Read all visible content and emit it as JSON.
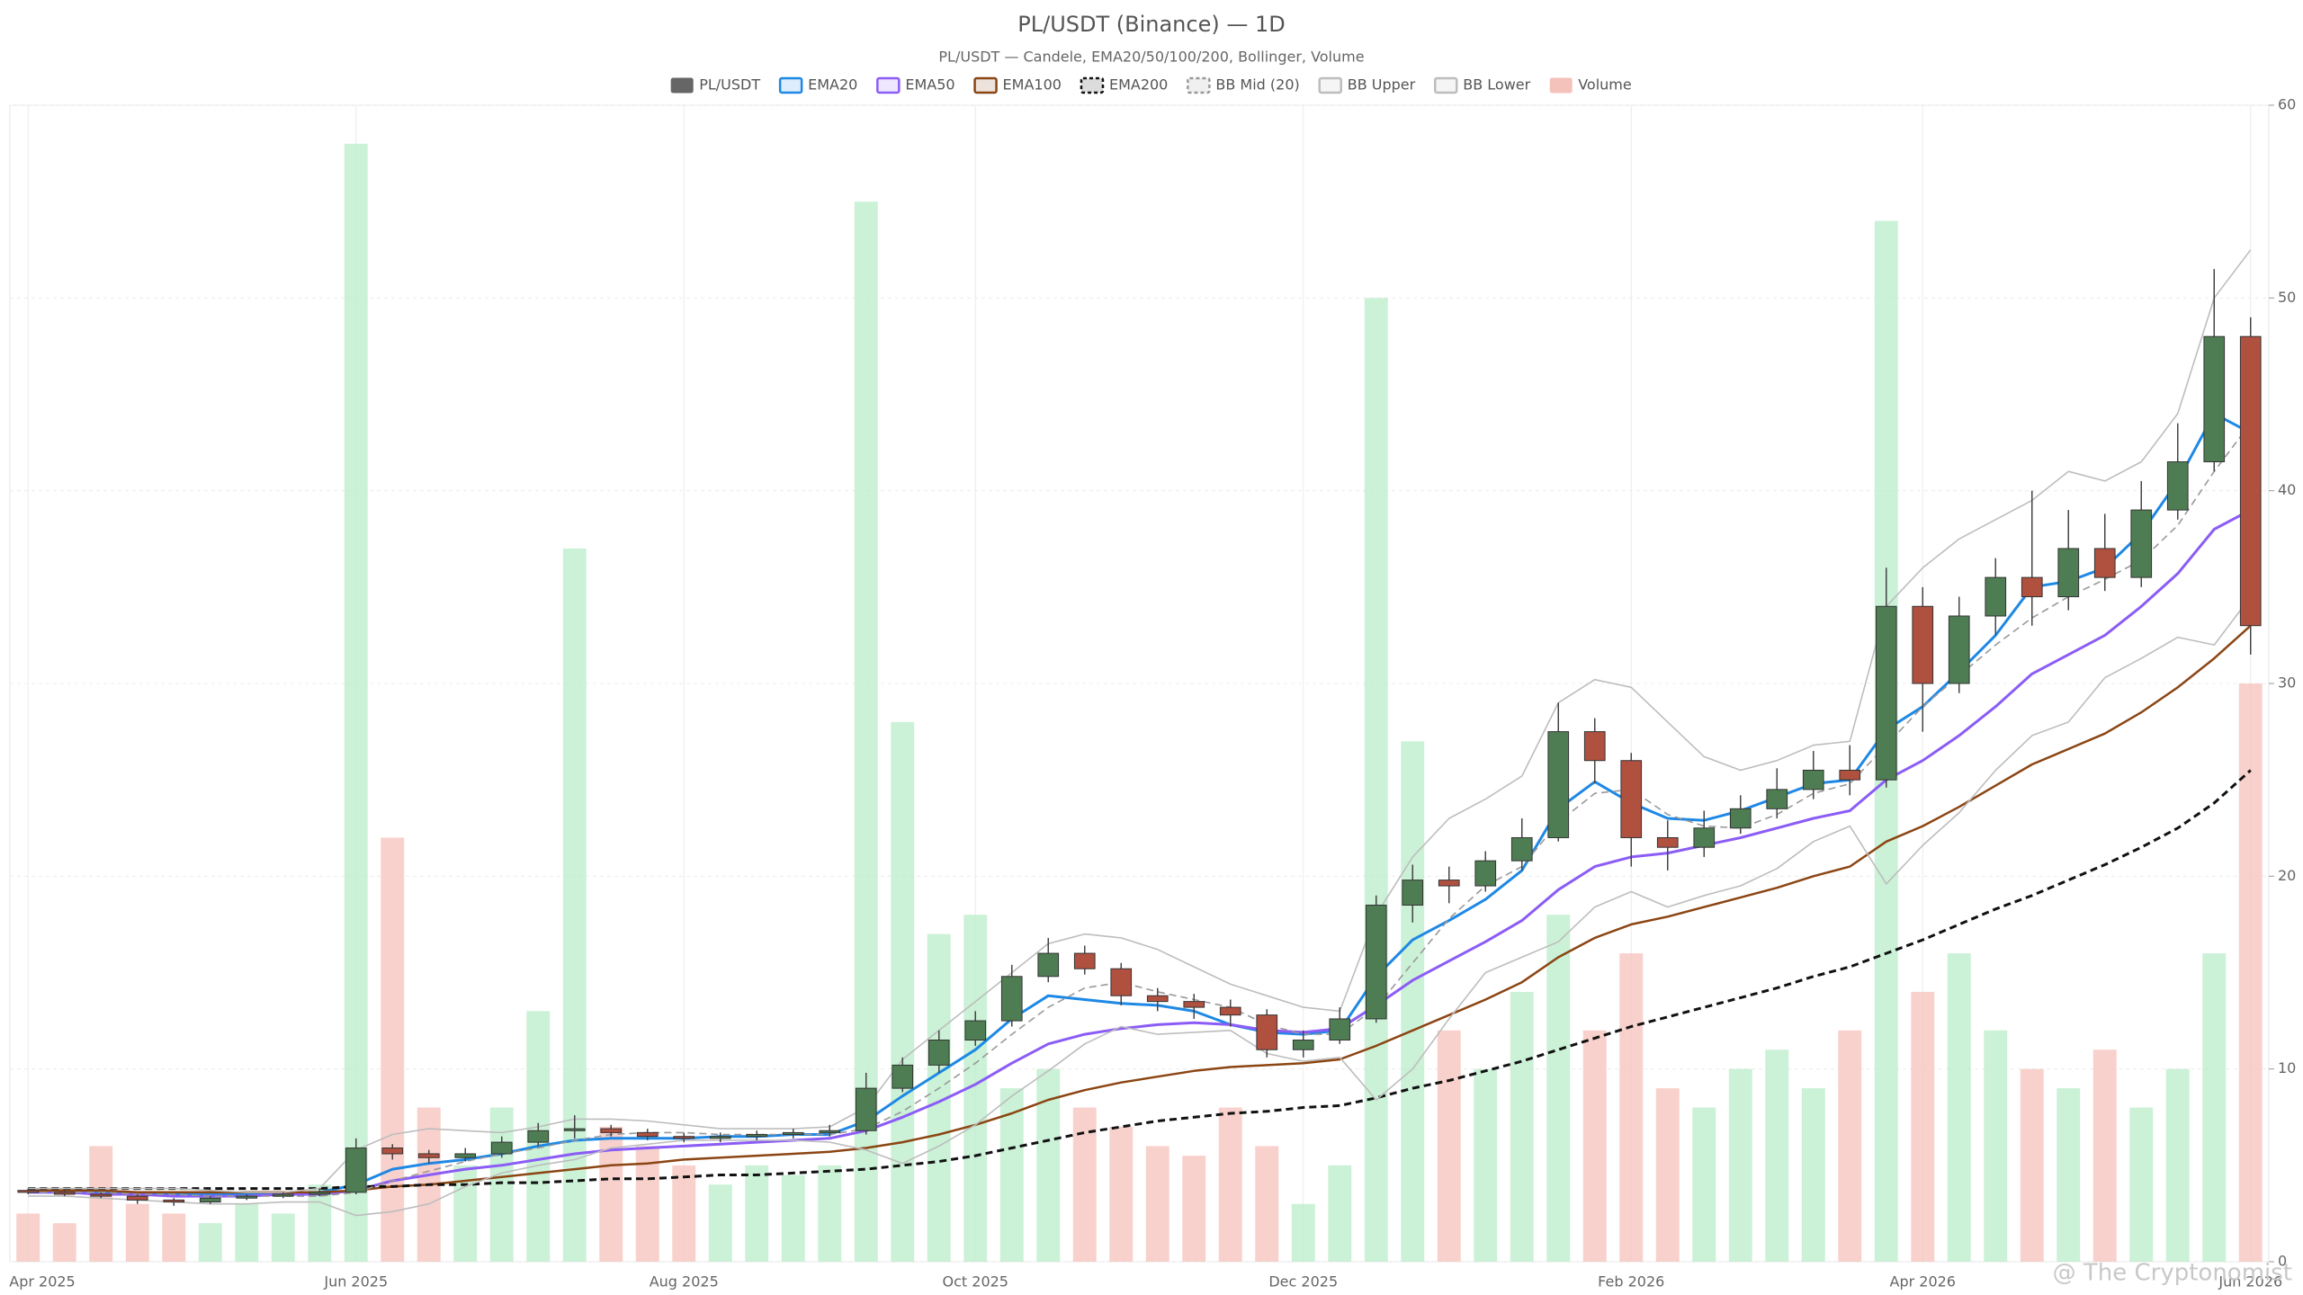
{
  "chart_data": {
    "type": "candlestick",
    "title": "PL/USDT (Binance) — 1D",
    "subtitle": "PL/USDT — Candele, EMA20/50/100/200, Bollinger, Volume",
    "watermark": "@ The Cryptonomist",
    "categories": [
      "Apr 2025",
      null,
      null,
      null,
      null,
      null,
      null,
      null,
      null,
      "Jun 2025",
      null,
      null,
      null,
      null,
      null,
      null,
      null,
      null,
      "Aug 2025",
      null,
      null,
      null,
      null,
      null,
      null,
      null,
      "Oct 2025",
      null,
      null,
      null,
      null,
      null,
      null,
      null,
      null,
      "Dec 2025",
      null,
      null,
      null,
      null,
      null,
      null,
      null,
      null,
      "Feb 2026",
      null,
      null,
      null,
      null,
      null,
      null,
      null,
      "Apr 2026",
      null,
      null,
      null,
      null,
      null,
      null,
      null,
      null,
      "Jun 2026"
    ],
    "ylim": [
      0,
      60
    ],
    "yticks": [
      0,
      10,
      20,
      30,
      40,
      50,
      60
    ],
    "grid": true,
    "legend": "top",
    "series": [
      {
        "name": "PL/USDT",
        "kind": "candle",
        "color": "#666666",
        "up_color": "#4e7d53",
        "down_color": "#b0503f",
        "open": [
          3.7,
          3.6,
          3.5,
          3.4,
          3.2,
          3.1,
          3.3,
          3.4,
          3.5,
          3.6,
          5.9,
          5.6,
          5.4,
          5.6,
          6.2,
          6.8,
          6.9,
          6.7,
          6.5,
          6.4,
          6.5,
          6.6,
          6.7,
          6.8,
          9.0,
          10.2,
          11.5,
          12.5,
          14.8,
          16.0,
          15.2,
          13.8,
          13.5,
          13.2,
          12.8,
          11.0,
          11.5,
          12.6,
          18.5,
          19.8,
          19.5,
          20.8,
          22.0,
          27.5,
          26.0,
          22.0,
          21.5,
          22.5,
          23.5,
          24.5,
          25.5,
          25.0,
          34.0,
          30.0,
          33.5,
          35.5,
          34.5,
          37.0,
          35.5,
          39.0,
          41.5,
          48.0
        ],
        "high": [
          3.8,
          3.7,
          3.6,
          3.5,
          3.3,
          3.4,
          3.5,
          3.6,
          3.8,
          6.4,
          6.1,
          5.8,
          5.9,
          6.5,
          7.2,
          7.6,
          7.1,
          6.9,
          6.7,
          6.7,
          6.8,
          6.9,
          7.1,
          9.8,
          10.6,
          12.0,
          13.0,
          15.4,
          16.8,
          16.4,
          15.5,
          14.2,
          13.9,
          13.6,
          13.1,
          12.0,
          13.2,
          19.0,
          20.6,
          20.5,
          21.3,
          23.0,
          29.0,
          28.2,
          26.4,
          22.9,
          23.4,
          24.2,
          25.6,
          26.5,
          26.8,
          36.0,
          35.0,
          34.5,
          36.5,
          40.0,
          39.0,
          38.8,
          40.5,
          43.5,
          51.5,
          49.0
        ],
        "low": [
          3.5,
          3.4,
          3.3,
          3.0,
          2.9,
          3.0,
          3.2,
          3.3,
          3.4,
          3.5,
          5.3,
          5.1,
          5.2,
          5.4,
          6.0,
          6.4,
          6.5,
          6.3,
          6.2,
          6.2,
          6.3,
          6.4,
          6.5,
          6.6,
          8.8,
          9.8,
          11.2,
          12.2,
          14.5,
          14.9,
          13.3,
          13.0,
          12.6,
          12.2,
          10.6,
          10.6,
          11.3,
          12.4,
          17.6,
          18.6,
          19.2,
          20.3,
          21.8,
          24.8,
          20.5,
          20.3,
          21.0,
          22.2,
          23.0,
          24.0,
          24.2,
          24.6,
          27.5,
          29.5,
          32.5,
          33.0,
          33.8,
          34.8,
          35.0,
          38.5,
          41.0,
          31.5
        ],
        "close": [
          3.6,
          3.5,
          3.4,
          3.2,
          3.1,
          3.3,
          3.4,
          3.5,
          3.6,
          5.9,
          5.6,
          5.4,
          5.6,
          6.2,
          6.8,
          6.9,
          6.7,
          6.5,
          6.4,
          6.5,
          6.6,
          6.7,
          6.8,
          9.0,
          10.2,
          11.5,
          12.5,
          14.8,
          16.0,
          15.2,
          13.8,
          13.5,
          13.2,
          12.8,
          11.0,
          11.5,
          12.6,
          18.5,
          19.8,
          19.5,
          20.8,
          22.0,
          27.5,
          26.0,
          22.0,
          21.5,
          22.5,
          23.5,
          24.5,
          25.5,
          25.0,
          34.0,
          30.0,
          33.5,
          35.5,
          34.5,
          37.0,
          35.5,
          39.0,
          41.5,
          48.0,
          33.0
        ]
      },
      {
        "name": "EMA20",
        "kind": "line",
        "color": "#1e88e5",
        "width": 3,
        "values": [
          3.6,
          3.6,
          3.6,
          3.5,
          3.5,
          3.5,
          3.5,
          3.5,
          3.6,
          4.0,
          4.8,
          5.1,
          5.3,
          5.6,
          6.0,
          6.3,
          6.4,
          6.4,
          6.4,
          6.5,
          6.5,
          6.6,
          6.6,
          7.3,
          8.6,
          9.8,
          11.0,
          12.6,
          13.8,
          13.6,
          13.4,
          13.3,
          13.0,
          12.3,
          11.9,
          11.8,
          12.0,
          14.8,
          16.7,
          17.7,
          18.8,
          20.3,
          23.5,
          24.9,
          23.8,
          23.0,
          22.9,
          23.4,
          24.1,
          24.8,
          25.0,
          27.6,
          28.8,
          30.6,
          32.5,
          35.0,
          35.3,
          36.0,
          37.8,
          40.5,
          44.0,
          43.0
        ]
      },
      {
        "name": "EMA50",
        "kind": "line",
        "color": "#8b5cf6",
        "width": 3,
        "values": [
          3.6,
          3.6,
          3.5,
          3.5,
          3.4,
          3.4,
          3.4,
          3.5,
          3.5,
          3.7,
          4.2,
          4.5,
          4.8,
          5.0,
          5.3,
          5.6,
          5.8,
          5.9,
          6.0,
          6.1,
          6.2,
          6.3,
          6.4,
          6.8,
          7.5,
          8.3,
          9.2,
          10.3,
          11.3,
          11.8,
          12.1,
          12.3,
          12.4,
          12.3,
          12.0,
          11.9,
          12.1,
          13.3,
          14.6,
          15.6,
          16.6,
          17.7,
          19.3,
          20.5,
          21.0,
          21.2,
          21.6,
          22.0,
          22.5,
          23.0,
          23.4,
          25.0,
          26.0,
          27.3,
          28.8,
          30.5,
          31.5,
          32.5,
          34.0,
          35.7,
          38.0,
          39.0
        ]
      },
      {
        "name": "EMA100",
        "kind": "line",
        "color": "#8b4513",
        "width": 2.5,
        "values": [
          3.7,
          3.7,
          3.7,
          3.6,
          3.6,
          3.6,
          3.6,
          3.6,
          3.6,
          3.7,
          3.9,
          4.0,
          4.2,
          4.4,
          4.6,
          4.8,
          5.0,
          5.1,
          5.3,
          5.4,
          5.5,
          5.6,
          5.7,
          5.9,
          6.2,
          6.6,
          7.1,
          7.7,
          8.4,
          8.9,
          9.3,
          9.6,
          9.9,
          10.1,
          10.2,
          10.3,
          10.5,
          11.2,
          12.0,
          12.8,
          13.6,
          14.5,
          15.8,
          16.8,
          17.5,
          17.9,
          18.4,
          18.9,
          19.4,
          20.0,
          20.5,
          21.8,
          22.6,
          23.6,
          24.7,
          25.8,
          26.6,
          27.4,
          28.5,
          29.8,
          31.3,
          33.0
        ]
      },
      {
        "name": "EMA200",
        "kind": "line",
        "color": "#111111",
        "width": 3,
        "dash": true,
        "values": [
          3.8,
          3.8,
          3.8,
          3.8,
          3.8,
          3.8,
          3.8,
          3.8,
          3.8,
          3.9,
          3.9,
          4.0,
          4.0,
          4.1,
          4.1,
          4.2,
          4.3,
          4.3,
          4.4,
          4.5,
          4.5,
          4.6,
          4.7,
          4.8,
          5.0,
          5.2,
          5.5,
          5.9,
          6.3,
          6.7,
          7.0,
          7.3,
          7.5,
          7.7,
          7.8,
          8.0,
          8.1,
          8.5,
          9.0,
          9.4,
          9.9,
          10.4,
          11.0,
          11.6,
          12.2,
          12.7,
          13.2,
          13.7,
          14.2,
          14.8,
          15.3,
          16.0,
          16.7,
          17.5,
          18.3,
          19.0,
          19.8,
          20.6,
          21.5,
          22.5,
          23.8,
          25.5
        ]
      },
      {
        "name": "BB Mid (20)",
        "kind": "line",
        "color": "#999999",
        "width": 1.6,
        "dash": true,
        "values": [
          3.6,
          3.6,
          3.6,
          3.5,
          3.5,
          3.4,
          3.4,
          3.4,
          3.4,
          3.6,
          4.2,
          4.7,
          5.2,
          5.6,
          5.9,
          6.3,
          6.6,
          6.7,
          6.7,
          6.6,
          6.6,
          6.6,
          6.6,
          6.9,
          7.8,
          9.0,
          10.3,
          11.8,
          13.2,
          14.2,
          14.5,
          14.0,
          13.6,
          13.2,
          12.3,
          11.8,
          11.8,
          13.2,
          15.5,
          17.8,
          19.5,
          20.5,
          22.8,
          24.3,
          24.5,
          23.2,
          22.6,
          22.5,
          23.2,
          24.3,
          24.8,
          26.8,
          28.8,
          30.4,
          32.0,
          33.4,
          34.5,
          35.4,
          36.4,
          38.2,
          41.0,
          43.5
        ]
      },
      {
        "name": "BB Upper",
        "kind": "line",
        "color": "#bdbdbd",
        "width": 1.6,
        "values": [
          3.8,
          3.8,
          3.8,
          3.8,
          3.8,
          3.7,
          3.6,
          3.6,
          3.8,
          5.8,
          6.6,
          6.9,
          6.8,
          6.7,
          7.0,
          7.4,
          7.4,
          7.3,
          7.1,
          6.9,
          6.9,
          6.9,
          7.0,
          8.0,
          10.5,
          12.0,
          13.5,
          15.0,
          16.5,
          17.0,
          16.8,
          16.2,
          15.3,
          14.4,
          13.8,
          13.2,
          13.0,
          18.0,
          21.0,
          23.0,
          24.0,
          25.2,
          29.0,
          30.2,
          29.8,
          28.0,
          26.2,
          25.5,
          26.0,
          26.8,
          27.0,
          34.0,
          36.0,
          37.5,
          38.5,
          39.5,
          41.0,
          40.5,
          41.5,
          44.0,
          50.0,
          52.5
        ]
      },
      {
        "name": "BB Lower",
        "kind": "line",
        "color": "#bdbdbd",
        "width": 1.6,
        "values": [
          3.4,
          3.4,
          3.3,
          3.2,
          3.1,
          3.0,
          3.0,
          3.1,
          3.1,
          2.4,
          2.6,
          3.0,
          3.9,
          4.6,
          5.0,
          5.3,
          5.9,
          6.1,
          6.3,
          6.3,
          6.3,
          6.3,
          6.2,
          5.8,
          5.1,
          6.0,
          7.1,
          8.6,
          9.9,
          11.3,
          12.2,
          11.8,
          11.9,
          12.0,
          10.8,
          10.4,
          10.6,
          8.4,
          10.0,
          12.6,
          15.0,
          15.8,
          16.6,
          18.4,
          19.2,
          18.4,
          19.0,
          19.5,
          20.4,
          21.8,
          22.6,
          19.6,
          21.6,
          23.3,
          25.5,
          27.3,
          28.0,
          30.3,
          31.3,
          32.4,
          32.0,
          34.5
        ]
      },
      {
        "name": "Volume",
        "kind": "volume",
        "color": "#f5c2bb",
        "up_color": "#b9ecc9",
        "down_color": "#f5c2bb",
        "values": [
          2.5,
          2.0,
          6.0,
          3.0,
          2.5,
          2.0,
          3.0,
          2.5,
          4.0,
          58.0,
          22.0,
          8.0,
          5.0,
          8.0,
          13.0,
          37.0,
          7.0,
          6.0,
          5.0,
          4.0,
          5.0,
          4.5,
          5.0,
          55.0,
          28.0,
          17.0,
          18.0,
          9.0,
          10.0,
          8.0,
          7.0,
          6.0,
          5.5,
          8.0,
          6.0,
          3.0,
          5.0,
          50.0,
          27.0,
          12.0,
          10.0,
          14.0,
          18.0,
          12.0,
          16.0,
          9.0,
          8.0,
          10.0,
          11.0,
          9.0,
          12.0,
          54.0,
          14.0,
          16.0,
          12.0,
          10.0,
          9.0,
          11.0,
          8.0,
          10.0,
          16.0,
          30.0
        ]
      }
    ]
  }
}
